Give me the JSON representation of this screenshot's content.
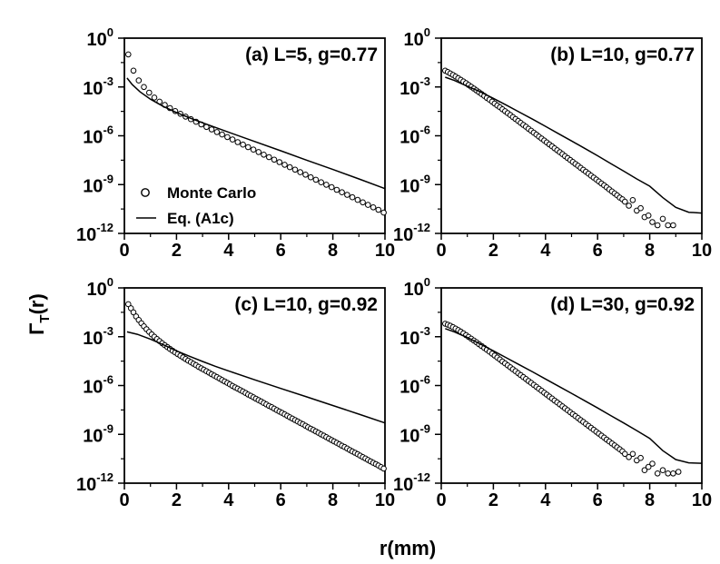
{
  "figure": {
    "ylabel_main": "Γ",
    "ylabel_sub": "T",
    "ylabel_tail": "(r)",
    "xlabel": "r(mm)"
  },
  "legend": {
    "marker_label": "Monte Carlo",
    "line_label": "Eq. (A1c)"
  },
  "chart_data": [
    {
      "type": "scatter",
      "panel": "a",
      "title": "(a) L=5, g=0.77",
      "xlim": [
        0,
        10
      ],
      "ylim": [
        -12,
        0
      ],
      "yscale": "log10",
      "xticks": [
        0,
        2,
        4,
        6,
        8,
        10
      ],
      "yticks_exp": [
        0,
        -3,
        -6,
        -9,
        -12
      ],
      "series": [
        {
          "name": "Monte Carlo",
          "style": "markers",
          "x": [
            0.15,
            0.35,
            0.55,
            0.75,
            0.95,
            1.15,
            1.35,
            1.55,
            1.75,
            1.95,
            2.15,
            2.35,
            2.55,
            2.75,
            2.95,
            3.15,
            3.35,
            3.55,
            3.75,
            3.95,
            4.15,
            4.35,
            4.55,
            4.75,
            4.95,
            5.15,
            5.35,
            5.55,
            5.75,
            5.95,
            6.15,
            6.35,
            6.55,
            6.75,
            6.95,
            7.15,
            7.35,
            7.55,
            7.75,
            7.95,
            8.15,
            8.35,
            8.55,
            8.75,
            8.95,
            9.15,
            9.35,
            9.55,
            9.75,
            9.95
          ],
          "y_log10": [
            -1.0,
            -2.0,
            -2.6,
            -3.0,
            -3.35,
            -3.65,
            -3.9,
            -4.1,
            -4.3,
            -4.48,
            -4.65,
            -4.82,
            -4.98,
            -5.14,
            -5.3,
            -5.46,
            -5.61,
            -5.77,
            -5.92,
            -6.08,
            -6.23,
            -6.39,
            -6.54,
            -6.7,
            -6.85,
            -7.0,
            -7.16,
            -7.31,
            -7.47,
            -7.62,
            -7.78,
            -7.93,
            -8.08,
            -8.24,
            -8.39,
            -8.55,
            -8.7,
            -8.86,
            -9.01,
            -9.16,
            -9.32,
            -9.47,
            -9.63,
            -9.78,
            -9.94,
            -10.09,
            -10.25,
            -10.4,
            -10.55,
            -10.72
          ]
        },
        {
          "name": "Eq. (A1c)",
          "style": "line",
          "x": [
            0.1,
            0.3,
            0.6,
            1.0,
            1.5,
            2.0,
            2.5,
            3.0,
            4.0,
            5.0,
            6.0,
            7.0,
            8.0,
            9.0,
            10.0
          ],
          "y_log10": [
            -2.45,
            -2.85,
            -3.3,
            -3.75,
            -4.2,
            -4.57,
            -4.9,
            -5.2,
            -5.78,
            -6.35,
            -6.92,
            -7.5,
            -8.07,
            -8.65,
            -9.25
          ]
        }
      ]
    },
    {
      "type": "scatter",
      "panel": "b",
      "title": "(b) L=10, g=0.77",
      "xlim": [
        0,
        10
      ],
      "ylim": [
        -12,
        0
      ],
      "yscale": "log10",
      "xticks": [
        0,
        2,
        4,
        6,
        8,
        10
      ],
      "yticks_exp": [
        0,
        -3,
        -6,
        -9,
        -12
      ],
      "series": [
        {
          "name": "Monte Carlo",
          "style": "markers",
          "x": [
            0.15,
            0.25,
            0.35,
            0.45,
            0.55,
            0.65,
            0.75,
            0.85,
            0.95,
            1.05,
            1.15,
            1.25,
            1.35,
            1.45,
            1.55,
            1.65,
            1.75,
            1.85,
            1.95,
            2.05,
            2.15,
            2.25,
            2.35,
            2.45,
            2.55,
            2.65,
            2.75,
            2.85,
            2.95,
            3.05,
            3.15,
            3.25,
            3.35,
            3.45,
            3.55,
            3.65,
            3.75,
            3.85,
            3.95,
            4.05,
            4.15,
            4.25,
            4.35,
            4.45,
            4.55,
            4.65,
            4.75,
            4.85,
            4.95,
            5.05,
            5.15,
            5.25,
            5.35,
            5.45,
            5.55,
            5.65,
            5.75,
            5.85,
            5.95,
            6.05,
            6.15,
            6.25,
            6.35,
            6.45,
            6.55,
            6.65,
            6.75,
            6.85,
            6.95,
            7.05,
            7.2,
            7.35,
            7.5,
            7.65,
            7.8,
            7.95,
            8.1,
            8.3,
            8.5,
            8.7,
            8.9
          ],
          "y_log10": [
            -2.0,
            -2.08,
            -2.17,
            -2.26,
            -2.36,
            -2.46,
            -2.56,
            -2.66,
            -2.77,
            -2.88,
            -2.99,
            -3.1,
            -3.21,
            -3.32,
            -3.44,
            -3.55,
            -3.67,
            -3.78,
            -3.9,
            -4.02,
            -4.14,
            -4.25,
            -4.37,
            -4.49,
            -4.61,
            -4.73,
            -4.85,
            -4.97,
            -5.09,
            -5.21,
            -5.33,
            -5.45,
            -5.57,
            -5.69,
            -5.81,
            -5.93,
            -6.05,
            -6.17,
            -6.29,
            -6.41,
            -6.53,
            -6.65,
            -6.77,
            -6.89,
            -7.01,
            -7.13,
            -7.25,
            -7.37,
            -7.49,
            -7.61,
            -7.73,
            -7.85,
            -7.97,
            -8.09,
            -8.21,
            -8.33,
            -8.45,
            -8.57,
            -8.69,
            -8.81,
            -8.93,
            -9.05,
            -9.17,
            -9.3,
            -9.42,
            -9.54,
            -9.66,
            -9.8,
            -9.9,
            -10.05,
            -10.3,
            -9.95,
            -10.6,
            -10.45,
            -11.0,
            -10.9,
            -11.3,
            -11.5,
            -11.1,
            -11.5,
            -11.5
          ]
        },
        {
          "name": "Eq. (A1c)",
          "style": "line",
          "x": [
            0.15,
            0.5,
            1.0,
            1.5,
            2.0,
            2.5,
            3.0,
            3.5,
            4.0,
            4.5,
            5.0,
            5.5,
            6.0,
            6.5,
            7.0,
            7.5,
            8.0,
            8.5,
            9.0,
            9.5,
            10.0
          ],
          "y_log10": [
            -2.4,
            -2.6,
            -2.95,
            -3.3,
            -3.7,
            -4.12,
            -4.55,
            -4.98,
            -5.42,
            -5.87,
            -6.32,
            -6.77,
            -7.23,
            -7.7,
            -8.17,
            -8.65,
            -9.1,
            -9.8,
            -10.4,
            -10.7,
            -10.75
          ]
        }
      ]
    },
    {
      "type": "scatter",
      "panel": "c",
      "title": "(c) L=10, g=0.92",
      "xlim": [
        0,
        10
      ],
      "ylim": [
        -12,
        0
      ],
      "yscale": "log10",
      "xticks": [
        0,
        2,
        4,
        6,
        8,
        10
      ],
      "yticks_exp": [
        0,
        -3,
        -6,
        -9,
        -12
      ],
      "series": [
        {
          "name": "Monte Carlo",
          "style": "markers",
          "x": [
            0.15,
            0.25,
            0.35,
            0.45,
            0.55,
            0.65,
            0.75,
            0.85,
            0.95,
            1.05,
            1.15,
            1.25,
            1.35,
            1.45,
            1.55,
            1.65,
            1.75,
            1.85,
            1.95,
            2.05,
            2.15,
            2.25,
            2.35,
            2.45,
            2.55,
            2.65,
            2.75,
            2.85,
            2.95,
            3.05,
            3.15,
            3.25,
            3.35,
            3.45,
            3.55,
            3.65,
            3.75,
            3.85,
            3.95,
            4.05,
            4.15,
            4.25,
            4.35,
            4.45,
            4.55,
            4.65,
            4.75,
            4.85,
            4.95,
            5.05,
            5.15,
            5.25,
            5.35,
            5.45,
            5.55,
            5.65,
            5.75,
            5.85,
            5.95,
            6.05,
            6.15,
            6.25,
            6.35,
            6.45,
            6.55,
            6.65,
            6.75,
            6.85,
            6.95,
            7.05,
            7.15,
            7.25,
            7.35,
            7.45,
            7.55,
            7.65,
            7.75,
            7.85,
            7.95,
            8.05,
            8.15,
            8.25,
            8.35,
            8.45,
            8.55,
            8.65,
            8.75,
            8.85,
            8.95,
            9.05,
            9.15,
            9.25,
            9.35,
            9.45,
            9.55,
            9.65,
            9.75,
            9.85,
            9.95
          ],
          "y_log10": [
            -1.0,
            -1.25,
            -1.5,
            -1.75,
            -1.97,
            -2.17,
            -2.36,
            -2.54,
            -2.7,
            -2.86,
            -3.0,
            -3.14,
            -3.27,
            -3.4,
            -3.52,
            -3.64,
            -3.75,
            -3.86,
            -3.97,
            -4.07,
            -4.17,
            -4.27,
            -4.37,
            -4.47,
            -4.56,
            -4.66,
            -4.75,
            -4.85,
            -4.94,
            -5.03,
            -5.12,
            -5.21,
            -5.3,
            -5.39,
            -5.48,
            -5.57,
            -5.66,
            -5.75,
            -5.84,
            -5.93,
            -6.02,
            -6.11,
            -6.19,
            -6.28,
            -6.37,
            -6.46,
            -6.55,
            -6.63,
            -6.72,
            -6.81,
            -6.9,
            -6.98,
            -7.07,
            -7.16,
            -7.25,
            -7.33,
            -7.42,
            -7.51,
            -7.6,
            -7.68,
            -7.77,
            -7.86,
            -7.95,
            -8.03,
            -8.12,
            -8.21,
            -8.3,
            -8.38,
            -8.47,
            -8.56,
            -8.65,
            -8.73,
            -8.82,
            -8.91,
            -9.0,
            -9.08,
            -9.17,
            -9.26,
            -9.35,
            -9.43,
            -9.52,
            -9.61,
            -9.7,
            -9.78,
            -9.87,
            -9.96,
            -10.05,
            -10.13,
            -10.22,
            -10.31,
            -10.4,
            -10.48,
            -10.57,
            -10.66,
            -10.75,
            -10.83,
            -10.92,
            -11.01,
            -11.1
          ]
        },
        {
          "name": "Eq. (A1c)",
          "style": "line",
          "x": [
            0.1,
            0.5,
            1.0,
            1.5,
            2.0,
            2.5,
            3.0,
            3.5,
            4.0,
            5.0,
            6.0,
            7.0,
            8.0,
            9.0,
            10.0
          ],
          "y_log10": [
            -2.7,
            -2.85,
            -3.15,
            -3.5,
            -3.87,
            -4.2,
            -4.52,
            -4.82,
            -5.1,
            -5.65,
            -6.18,
            -6.7,
            -7.23,
            -7.76,
            -8.3
          ]
        }
      ]
    },
    {
      "type": "scatter",
      "panel": "d",
      "title": "(d) L=30, g=0.92",
      "xlim": [
        0,
        10
      ],
      "ylim": [
        -12,
        0
      ],
      "yscale": "log10",
      "xticks": [
        0,
        2,
        4,
        6,
        8,
        10
      ],
      "yticks_exp": [
        0,
        -3,
        -6,
        -9,
        -12
      ],
      "series": [
        {
          "name": "Monte Carlo",
          "style": "markers",
          "x": [
            0.15,
            0.25,
            0.35,
            0.45,
            0.55,
            0.65,
            0.75,
            0.85,
            0.95,
            1.05,
            1.15,
            1.25,
            1.35,
            1.45,
            1.55,
            1.65,
            1.75,
            1.85,
            1.95,
            2.05,
            2.15,
            2.25,
            2.35,
            2.45,
            2.55,
            2.65,
            2.75,
            2.85,
            2.95,
            3.05,
            3.15,
            3.25,
            3.35,
            3.45,
            3.55,
            3.65,
            3.75,
            3.85,
            3.95,
            4.05,
            4.15,
            4.25,
            4.35,
            4.45,
            4.55,
            4.65,
            4.75,
            4.85,
            4.95,
            5.05,
            5.15,
            5.25,
            5.35,
            5.45,
            5.55,
            5.65,
            5.75,
            5.85,
            5.95,
            6.05,
            6.15,
            6.25,
            6.35,
            6.45,
            6.55,
            6.65,
            6.75,
            6.85,
            6.95,
            7.05,
            7.2,
            7.35,
            7.5,
            7.65,
            7.8,
            7.95,
            8.1,
            8.3,
            8.5,
            8.7,
            8.9,
            9.1
          ],
          "y_log10": [
            -2.2,
            -2.26,
            -2.33,
            -2.41,
            -2.5,
            -2.59,
            -2.69,
            -2.79,
            -2.9,
            -3.01,
            -3.12,
            -3.23,
            -3.34,
            -3.46,
            -3.57,
            -3.69,
            -3.8,
            -3.92,
            -4.04,
            -4.16,
            -4.28,
            -4.4,
            -4.52,
            -4.64,
            -4.76,
            -4.88,
            -5.0,
            -5.12,
            -5.24,
            -5.36,
            -5.48,
            -5.6,
            -5.72,
            -5.84,
            -5.96,
            -6.08,
            -6.2,
            -6.32,
            -6.44,
            -6.56,
            -6.68,
            -6.8,
            -6.92,
            -7.04,
            -7.16,
            -7.28,
            -7.4,
            -7.52,
            -7.64,
            -7.76,
            -7.88,
            -8.0,
            -8.12,
            -8.24,
            -8.36,
            -8.48,
            -8.6,
            -8.72,
            -8.84,
            -8.96,
            -9.08,
            -9.2,
            -9.32,
            -9.44,
            -9.56,
            -9.68,
            -9.8,
            -9.92,
            -10.04,
            -10.2,
            -10.4,
            -10.2,
            -10.6,
            -10.45,
            -11.2,
            -11.0,
            -10.8,
            -11.4,
            -11.2,
            -11.4,
            -11.4,
            -11.3
          ]
        },
        {
          "name": "Eq. (A1c)",
          "style": "line",
          "x": [
            0.15,
            0.5,
            1.0,
            1.5,
            2.0,
            2.5,
            3.0,
            3.5,
            4.0,
            4.5,
            5.0,
            5.5,
            6.0,
            6.5,
            7.0,
            7.5,
            8.0,
            8.5,
            9.0,
            9.5,
            10.0
          ],
          "y_log10": [
            -2.5,
            -2.7,
            -3.05,
            -3.45,
            -3.87,
            -4.3,
            -4.73,
            -5.16,
            -5.6,
            -6.04,
            -6.48,
            -6.93,
            -7.38,
            -7.84,
            -8.3,
            -8.77,
            -9.25,
            -10.0,
            -10.55,
            -10.75,
            -10.78
          ]
        }
      ]
    }
  ]
}
